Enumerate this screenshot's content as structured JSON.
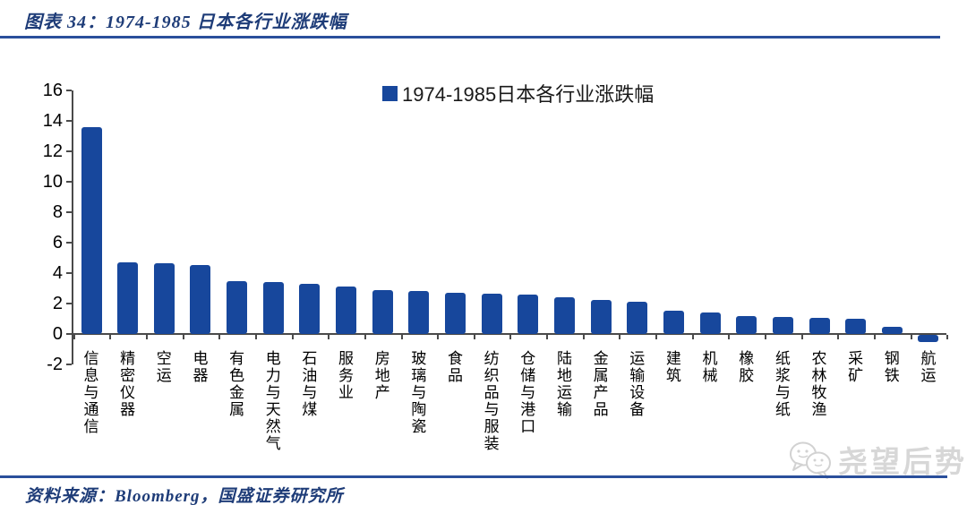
{
  "header": {
    "title": "图表 34：1974-1985 日本各行业涨跌幅"
  },
  "colors": {
    "bar": "#17479c",
    "rule_blue": "#2a4f9b",
    "title_navy": "#1e3c78",
    "axis_gray": "#4a4a4a",
    "watermark_gray": "#d7d7d7"
  },
  "chart_data": {
    "type": "bar",
    "title": "",
    "legend_label": "1974-1985日本各行业涨跌幅",
    "legend_position": "top-center",
    "grid": false,
    "bar_color": "#17479c",
    "ylim": [
      -2,
      16
    ],
    "ytick_step": 2,
    "yticks": [
      16,
      14,
      12,
      10,
      8,
      6,
      4,
      2,
      0,
      -2
    ],
    "xlabel": "",
    "ylabel": "",
    "categories": [
      "信息与通信",
      "精密仪器",
      "空运",
      "电器",
      "有色金属",
      "电力与天然气",
      "石油与煤",
      "服务业",
      "房地产",
      "玻璃与陶瓷",
      "食品",
      "纺织品与服装",
      "仓储与港口",
      "陆地运输",
      "金属产品",
      "运输设备",
      "建筑",
      "机械",
      "橡胶",
      "纸浆与纸",
      "农林牧渔",
      "采矿",
      "钢铁",
      "航运"
    ],
    "values": [
      13.6,
      4.7,
      4.65,
      4.55,
      3.45,
      3.4,
      3.3,
      3.1,
      2.9,
      2.8,
      2.7,
      2.65,
      2.6,
      2.4,
      2.25,
      2.1,
      1.55,
      1.4,
      1.15,
      1.1,
      1.05,
      1.0,
      0.5,
      -0.45
    ]
  },
  "watermark": {
    "text": "尧望后势",
    "logo": "chat-bubbles-icon"
  },
  "footer": {
    "source_label": "资料来源：Bloomberg，国盛证券研究所"
  }
}
